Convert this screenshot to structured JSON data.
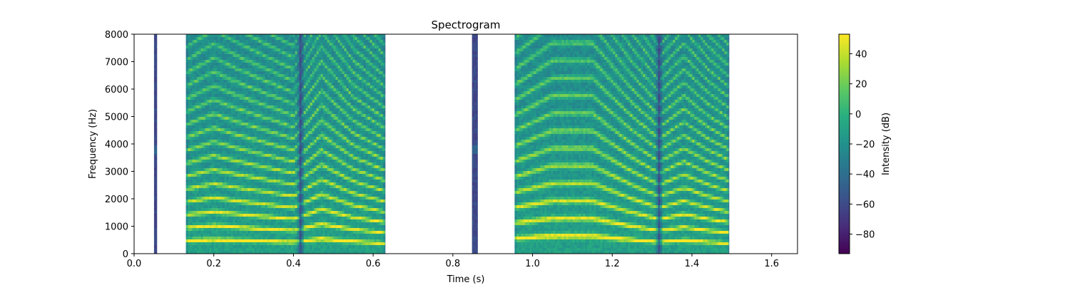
{
  "chart_data": {
    "type": "heatmap",
    "title": "Spectrogram",
    "xlabel": "Time (s)",
    "ylabel": "Frequency (Hz)",
    "xlim": [
      0,
      1.665
    ],
    "ylim": [
      0,
      8000
    ],
    "x_ticks": [
      0.0,
      0.2,
      0.4,
      0.6,
      0.8,
      1.0,
      1.2,
      1.4,
      1.6
    ],
    "x_tick_labels": [
      "0.0",
      "0.2",
      "0.4",
      "0.6",
      "0.8",
      "1.0",
      "1.2",
      "1.4",
      "1.6"
    ],
    "y_ticks": [
      0,
      1000,
      2000,
      3000,
      4000,
      5000,
      6000,
      7000,
      8000
    ],
    "y_tick_labels": [
      "0",
      "1000",
      "2000",
      "3000",
      "4000",
      "5000",
      "6000",
      "7000",
      "8000"
    ],
    "colorbar": {
      "label": "Intensity (dB)",
      "colormap": "viridis",
      "range": [
        -93,
        53
      ],
      "ticks": [
        40,
        20,
        0,
        -20,
        -40,
        -60,
        -80
      ],
      "tick_labels": [
        "40",
        "20",
        "0",
        "−20",
        "−40",
        "−60",
        "−80"
      ]
    },
    "segments": [
      {
        "start": 0.05,
        "end": 0.057,
        "kind": "burst"
      },
      {
        "start": 0.13,
        "end": 0.63,
        "kind": "voiced",
        "dip": 0.418,
        "f0": [
          [
            0.13,
            470
          ],
          [
            0.2,
            510
          ],
          [
            0.26,
            480
          ],
          [
            0.33,
            450
          ],
          [
            0.4,
            420
          ],
          [
            0.47,
            540
          ],
          [
            0.55,
            440
          ],
          [
            0.63,
            380
          ]
        ]
      },
      {
        "start": 0.848,
        "end": 0.862,
        "kind": "burst"
      },
      {
        "start": 0.955,
        "end": 1.493,
        "kind": "voiced",
        "dip": 1.318,
        "f0": [
          [
            0.955,
            560
          ],
          [
            1.05,
            640
          ],
          [
            1.15,
            640
          ],
          [
            1.25,
            500
          ],
          [
            1.318,
            420
          ],
          [
            1.38,
            480
          ],
          [
            1.44,
            420
          ],
          [
            1.493,
            380
          ]
        ]
      }
    ],
    "grid": false
  }
}
